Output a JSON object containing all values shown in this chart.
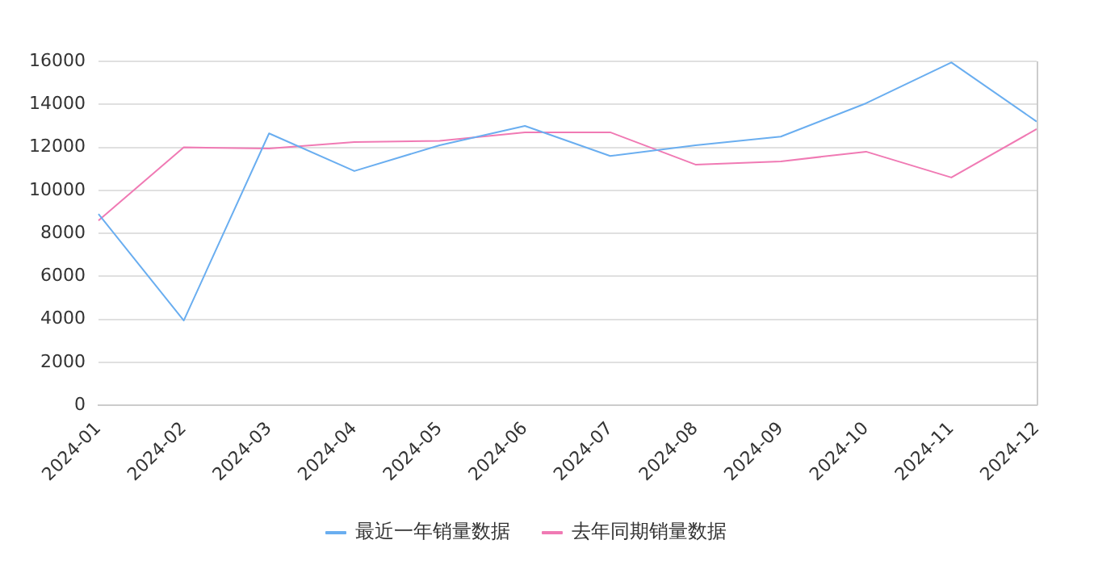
{
  "chart_data": {
    "type": "line",
    "categories": [
      "2024-01",
      "2024-02",
      "2024-03",
      "2024-04",
      "2024-05",
      "2024-06",
      "2024-07",
      "2024-08",
      "2024-09",
      "2024-10",
      "2024-11",
      "2024-12"
    ],
    "series": [
      {
        "name": "最近一年销量数据",
        "color": "#6aaef0",
        "values": [
          8900,
          3950,
          12650,
          10900,
          12100,
          13000,
          11600,
          12100,
          12500,
          14050,
          15950,
          13200
        ]
      },
      {
        "name": "去年同期销量数据",
        "color": "#f07ab4",
        "values": [
          8600,
          12000,
          11950,
          12250,
          12300,
          12700,
          12700,
          11200,
          11350,
          11800,
          10600,
          12850
        ]
      }
    ],
    "ylim": [
      0,
      16000
    ],
    "yticks": [
      0,
      2000,
      4000,
      6000,
      8000,
      10000,
      12000,
      14000,
      16000
    ],
    "grid": "y",
    "legend": "bottom",
    "marker": "none",
    "line_style": "solid"
  }
}
